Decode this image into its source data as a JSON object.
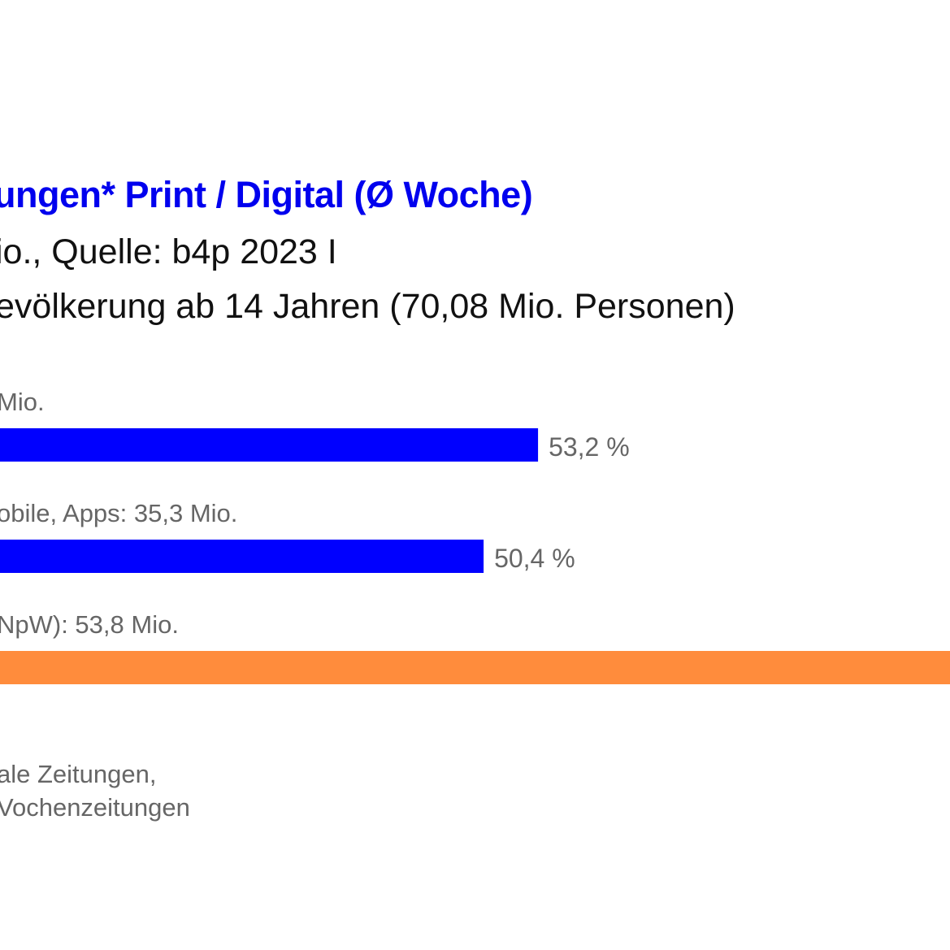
{
  "chart_data": {
    "type": "bar",
    "orientation": "horizontal",
    "title": "ungen* Print / Digital (Ø Woche)",
    "subtitle_lines": [
      "io., Quelle: b4p 2023 I",
      "evölkerung ab 14 Jahren (70,08 Mio. Personen)"
    ],
    "categories": [
      "Mio.",
      "obile, Apps: 35,3 Mio.",
      "NpW): 53,8 Mio."
    ],
    "values": [
      53.2,
      50.4,
      null
    ],
    "value_labels": [
      "53,2 %",
      "50,4 %",
      ""
    ],
    "colors": [
      "#0000ff",
      "#0000ff",
      "#ff8c3c"
    ],
    "unit": "%",
    "footnote_lines": [
      "ale Zeitungen,",
      "Vochenzeitungen"
    ]
  }
}
